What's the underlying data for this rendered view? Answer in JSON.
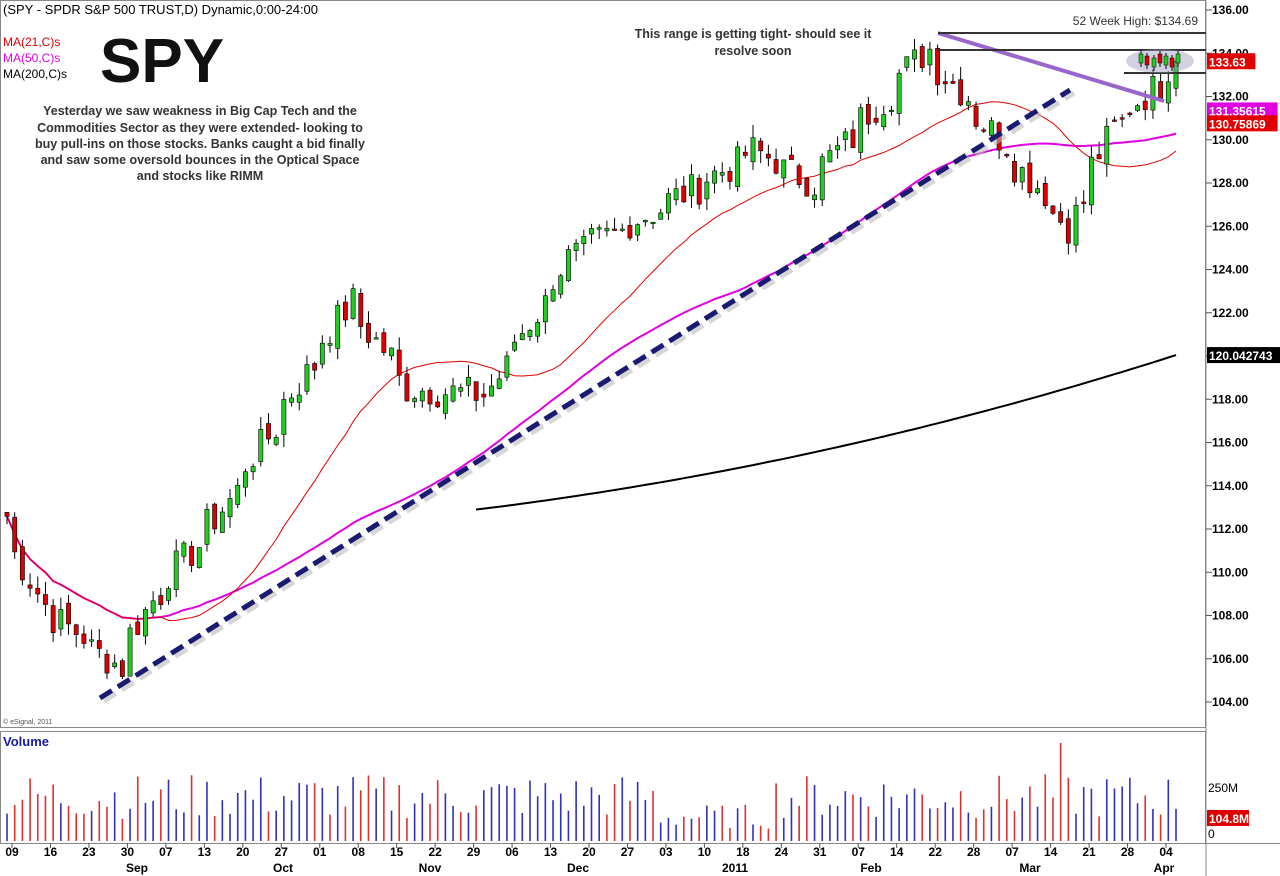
{
  "header": {
    "title_line": "(SPY - SPDR S&P 500 TRUST,D) Dynamic,0:00-24:00",
    "big_symbol": "SPY",
    "copyright": "© eSignal, 2011"
  },
  "legend": [
    {
      "label": "MA(21,C)s",
      "color": "#e00000"
    },
    {
      "label": "MA(50,C)s",
      "color": "#e000e0"
    },
    {
      "label": "MA(200,C)s",
      "color": "#000000"
    }
  ],
  "annotations": {
    "commentary": [
      "Yesterday we saw weakness in Big Cap Tech and the",
      "Commodities Sector as they were extended- looking to",
      "buy pull-ins on those stocks.  Banks caught a bid finally",
      "and saw some oversold bounces in the Optical Space",
      "and stocks like RIMM"
    ],
    "range_note": [
      "This range is getting tight- should see it",
      "resolve soon"
    ],
    "high_label": "52 Week High: $134.69"
  },
  "price_badges": [
    {
      "text": "133.63",
      "value": 133.63,
      "bg": "#e00000",
      "fg": "#ffffff"
    },
    {
      "text": "131.35615",
      "value": 131.35615,
      "bg": "#e000e0",
      "fg": "#ffffff"
    },
    {
      "text": "130.75869",
      "value": 130.75869,
      "bg": "#e00000",
      "fg": "#ffffff"
    },
    {
      "text": "120.042743",
      "value": 120.042743,
      "bg": "#000000",
      "fg": "#ffffff"
    }
  ],
  "volume_panel": {
    "title": "Volume",
    "ticks": [
      "250M",
      "0"
    ],
    "badge": "104.8M"
  },
  "colors": {
    "up": "#22cc22",
    "down": "#dd0000",
    "vol_up": "#3030c0",
    "vol_down": "#dd3030",
    "trendline": "#1a1a70",
    "resistance": "#9966cc"
  },
  "chart_data": {
    "type": "candlestick",
    "title": "(SPY - SPDR S&P 500 TRUST,D) Dynamic,0:00-24:00",
    "ylim": [
      103,
      136
    ],
    "y_ticks": [
      "104.00",
      "106.00",
      "108.00",
      "110.00",
      "112.00",
      "114.00",
      "116.00",
      "118.00",
      "120.00",
      "122.00",
      "124.00",
      "126.00",
      "128.00",
      "130.00",
      "132.00",
      "134.00",
      "136.00"
    ],
    "x_day_labels": [
      "09",
      "16",
      "23",
      "30",
      "07",
      "13",
      "20",
      "27",
      "01",
      "08",
      "15",
      "22",
      "29",
      "06",
      "13",
      "20",
      "27",
      "03",
      "10",
      "18",
      "24",
      "31",
      "07",
      "14",
      "22",
      "28",
      "07",
      "14",
      "21",
      "28",
      "04"
    ],
    "x_month_labels": [
      "Sep",
      "Oct",
      "Nov",
      "Dec",
      "2011",
      "Feb",
      "Mar",
      "Apr"
    ],
    "price_key_points": [
      {
        "date": "2010-09-03",
        "close": 112.6
      },
      {
        "date": "2010-09-10",
        "close": 108.5
      },
      {
        "date": "2010-09-24",
        "close": 105.6
      },
      {
        "date": "2010-09-30",
        "close": 108.7
      },
      {
        "date": "2010-10-12",
        "close": 112.5
      },
      {
        "date": "2010-11-05",
        "close": 122.5
      },
      {
        "date": "2010-11-16",
        "close": 118.5
      },
      {
        "date": "2010-11-30",
        "close": 118.2
      },
      {
        "date": "2010-12-15",
        "close": 124.5
      },
      {
        "date": "2011-01-05",
        "close": 127.5
      },
      {
        "date": "2011-01-18",
        "close": 129.5
      },
      {
        "date": "2011-01-28",
        "close": 128.0
      },
      {
        "date": "2011-02-18",
        "close": 134.2
      },
      {
        "date": "2011-03-16",
        "close": 126.0
      },
      {
        "date": "2011-03-24",
        "close": 130.5
      },
      {
        "date": "2011-04-05",
        "close": 133.63
      }
    ],
    "series": [
      {
        "name": "MA(21,C)s",
        "last": 130.75869
      },
      {
        "name": "MA(50,C)s",
        "last": 131.35615
      },
      {
        "name": "MA(200,C)s",
        "last": 120.042743
      }
    ],
    "lines": {
      "resistance_52wk_high": 134.69,
      "range_top": 134.0,
      "range_bottom": 133.0
    }
  }
}
